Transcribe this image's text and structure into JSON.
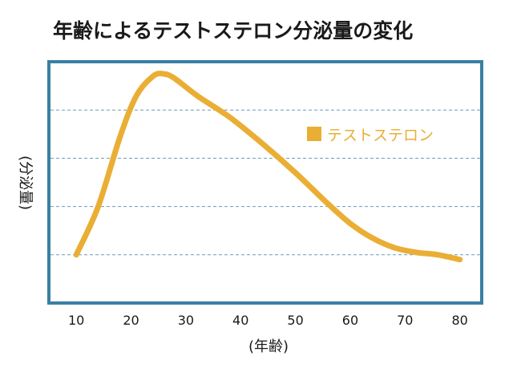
{
  "chart_data": {
    "type": "line",
    "title": "年齢によるテストステロン分泌量の変化",
    "xlabel": "(年齢)",
    "ylabel": "(分泌量)",
    "x_ticks": [
      "10",
      "20",
      "30",
      "40",
      "50",
      "60",
      "70",
      "80"
    ],
    "xlim": [
      5,
      84
    ],
    "ylim": [
      0,
      100
    ],
    "grid": {
      "horizontal": true,
      "style": "dashed",
      "color": "#6f9bb5",
      "levels": [
        20,
        40,
        60,
        80
      ]
    },
    "legend": {
      "position": "top-right"
    },
    "frame_color": "#3a7fa3",
    "series": [
      {
        "name": "テストステロン",
        "color": "#eaae35",
        "x": [
          10,
          14,
          18,
          21,
          24,
          26,
          28,
          32,
          38,
          44,
          50,
          56,
          60,
          64,
          68,
          72,
          76,
          80
        ],
        "y": [
          20,
          40,
          69,
          86,
          94,
          95,
          93,
          86,
          77,
          66,
          54,
          41,
          33,
          27,
          23,
          21,
          20,
          18
        ]
      }
    ]
  }
}
